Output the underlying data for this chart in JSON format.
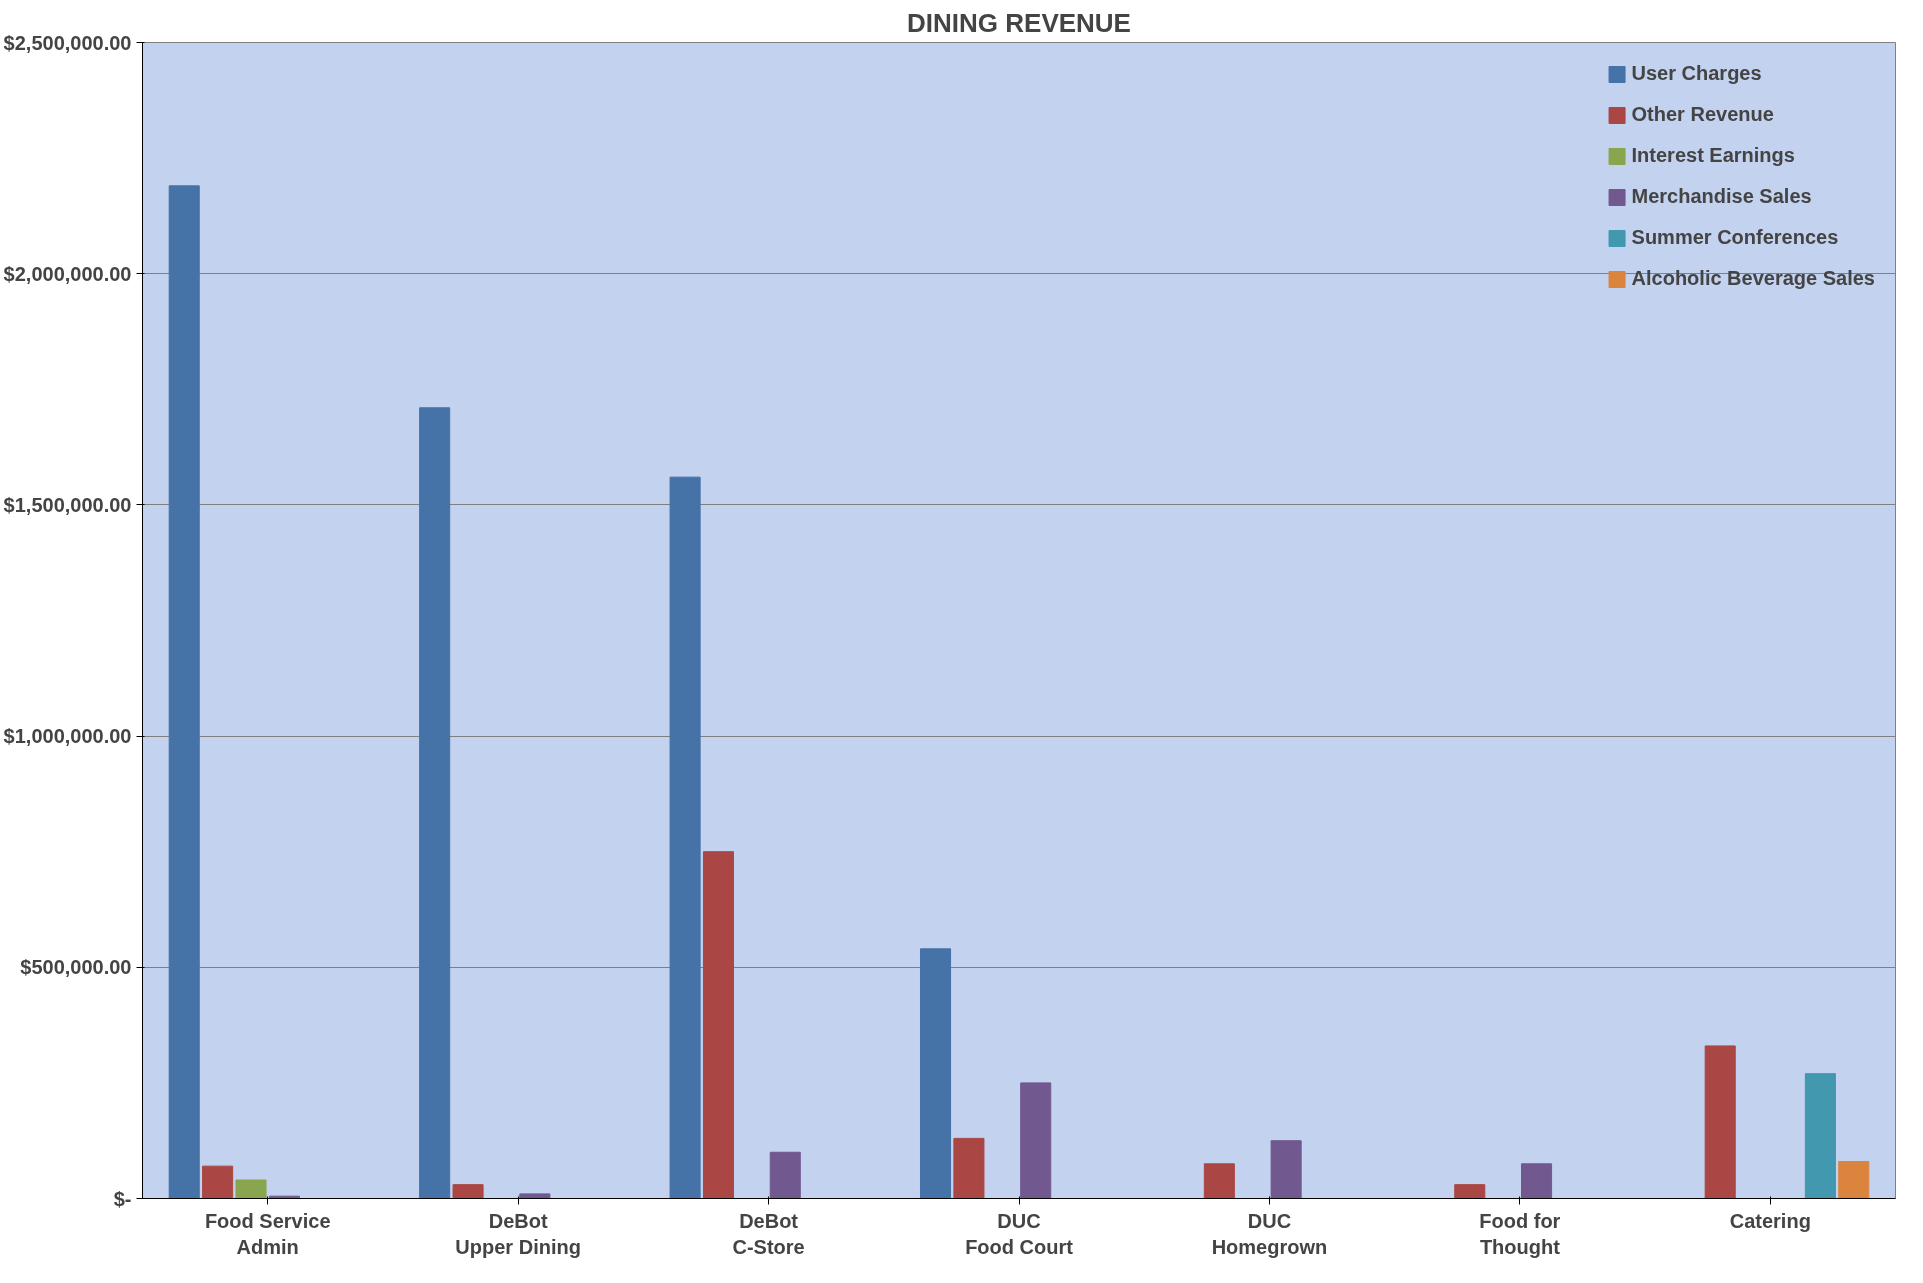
{
  "chart_data": {
    "type": "bar",
    "title": "DINING REVENUE",
    "categories": [
      "Food Service\nAdmin",
      "DeBot\nUpper Dining",
      "DeBot\nC-Store",
      "DUC\nFood Court",
      "DUC\nHomegrown",
      "Food for\nThought",
      "Catering"
    ],
    "series": [
      {
        "name": "User Charges",
        "color": "#4572a7",
        "values": [
          2190000,
          1710000,
          1560000,
          540000,
          0,
          0,
          0
        ]
      },
      {
        "name": "Other Revenue",
        "color": "#aa4643",
        "values": [
          70000,
          30000,
          750000,
          130000,
          75000,
          30000,
          330000
        ]
      },
      {
        "name": "Interest Earnings",
        "color": "#89a54e",
        "values": [
          40000,
          0,
          0,
          0,
          0,
          0,
          0
        ]
      },
      {
        "name": "Merchandise Sales",
        "color": "#71588f",
        "values": [
          5000,
          10000,
          100000,
          250000,
          125000,
          75000,
          0
        ]
      },
      {
        "name": "Summer Conferences",
        "color": "#4198af",
        "values": [
          0,
          0,
          0,
          0,
          0,
          0,
          270000
        ]
      },
      {
        "name": "Alcoholic Beverage Sales",
        "color": "#db843d",
        "values": [
          0,
          0,
          0,
          0,
          0,
          0,
          80000
        ]
      }
    ],
    "ylim": [
      0,
      2500000
    ],
    "yticks": [
      {
        "value": 0,
        "label": "$-"
      },
      {
        "value": 500000,
        "label": "$500,000.00"
      },
      {
        "value": 1000000,
        "label": "$1,000,000.00"
      },
      {
        "value": 1500000,
        "label": "$1,500,000.00"
      },
      {
        "value": 2000000,
        "label": "$2,000,000.00"
      },
      {
        "value": 2500000,
        "label": "$2,500,000.00"
      }
    ],
    "grid": "y",
    "legend": "top right"
  }
}
